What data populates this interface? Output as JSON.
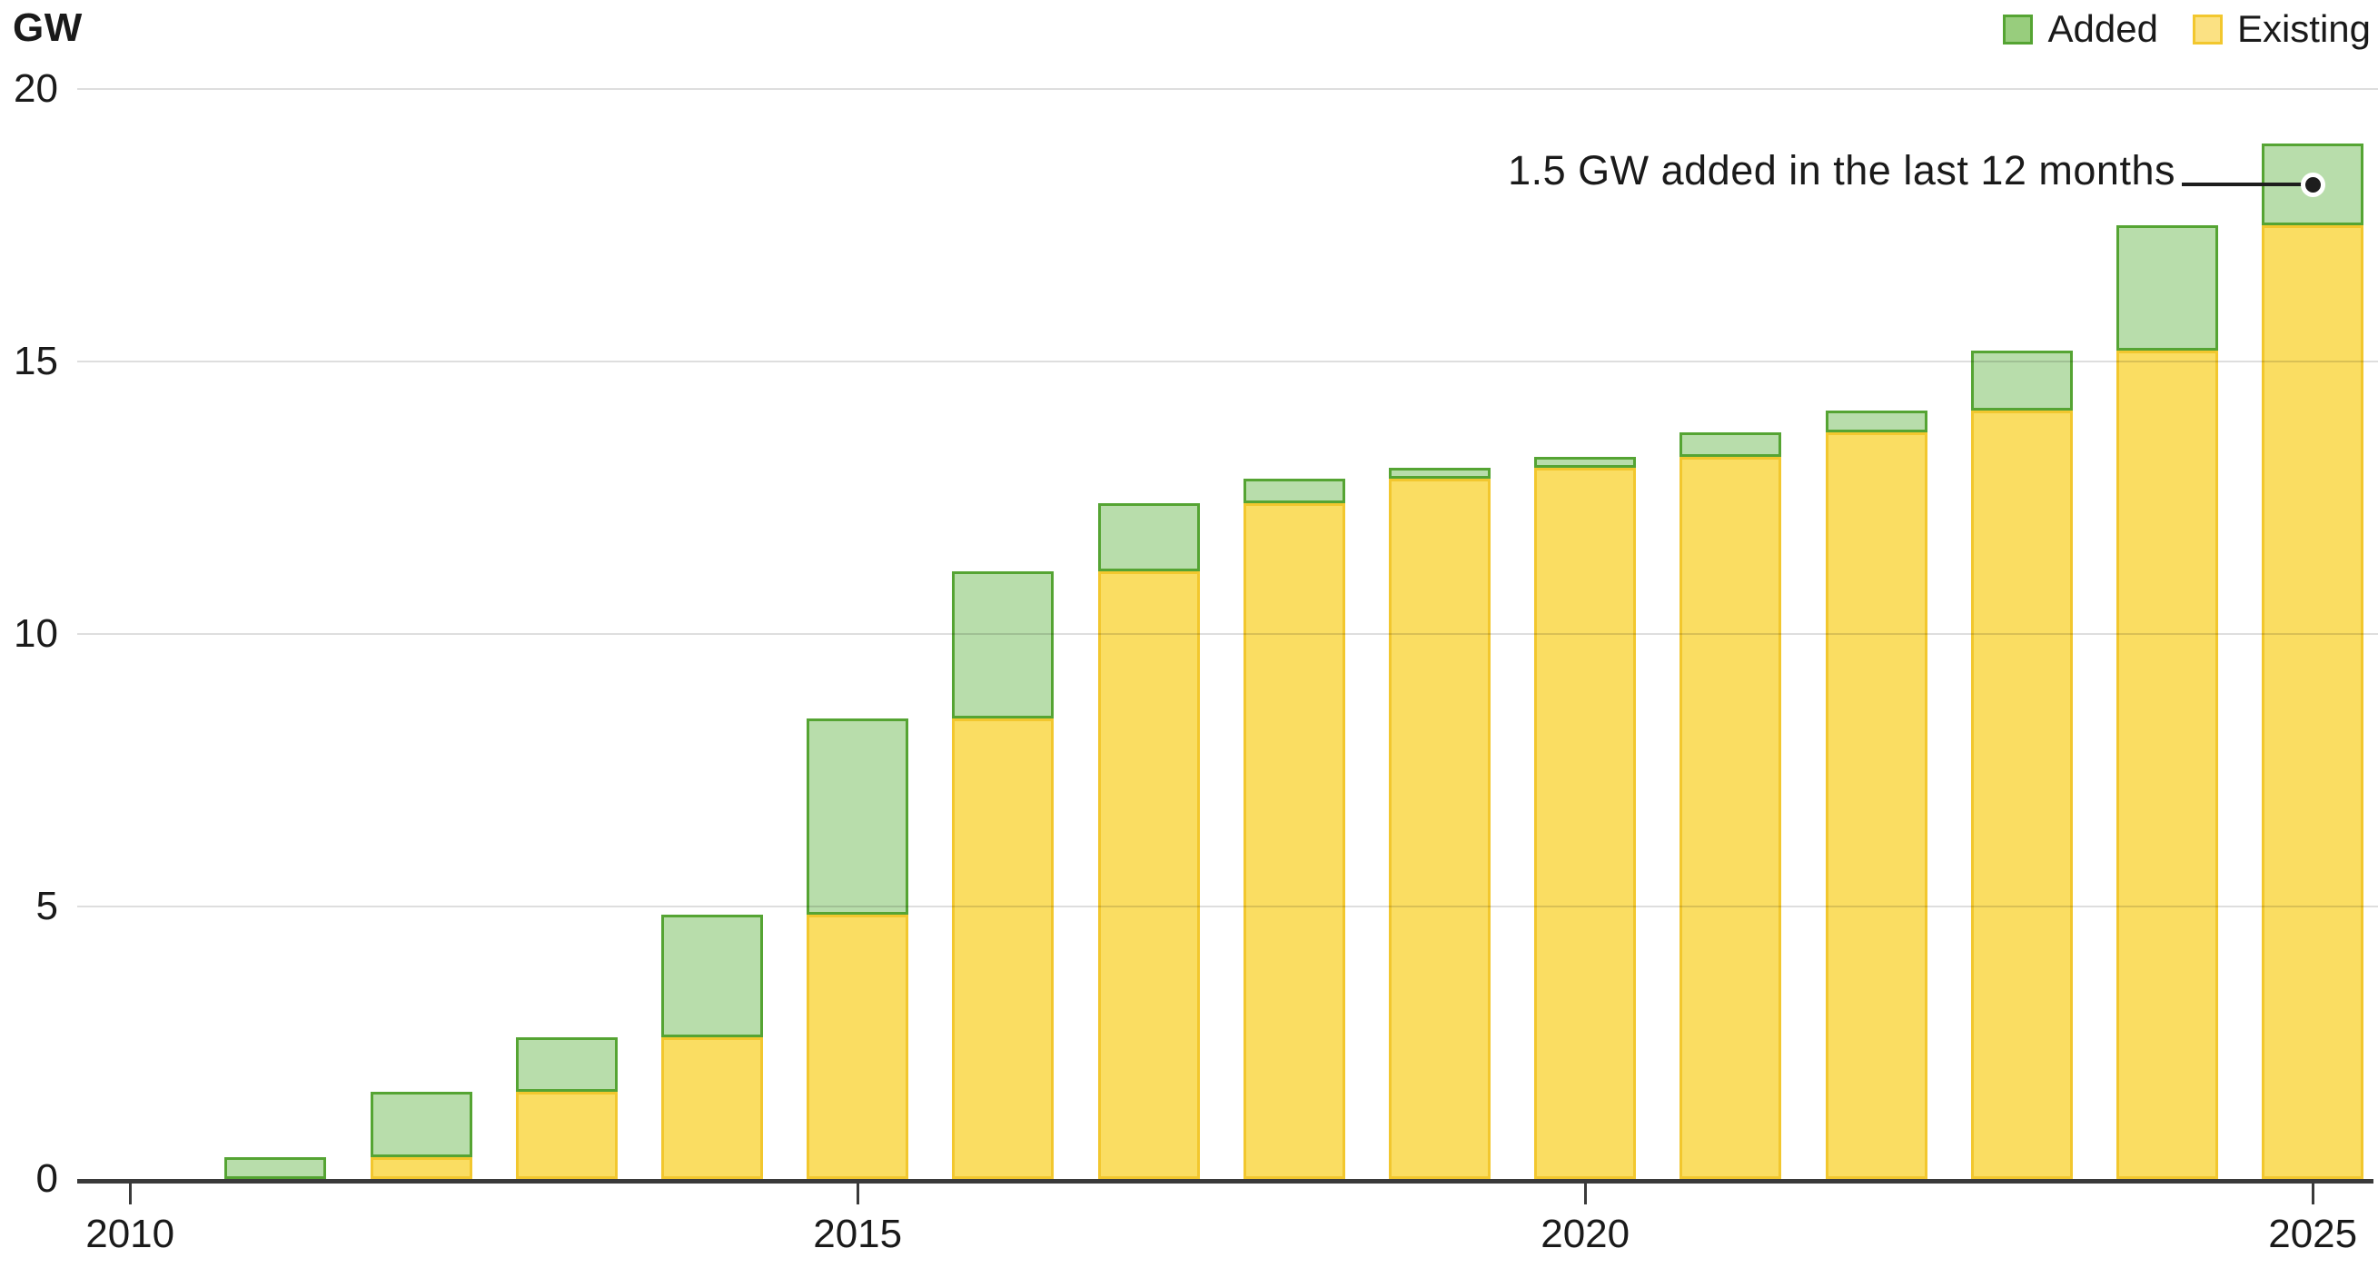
{
  "chart_data": {
    "type": "bar",
    "stacked": true,
    "unit_label": "GW",
    "categories": [
      2010,
      2011,
      2012,
      2013,
      2014,
      2015,
      2016,
      2017,
      2018,
      2019,
      2020,
      2021,
      2022,
      2023,
      2024,
      2025
    ],
    "series": [
      {
        "name": "Added",
        "fill": "#b8ddab",
        "border": "#55a433",
        "legend_fill": "#98cd7d",
        "values": [
          0,
          0.4,
          1.2,
          1.0,
          2.25,
          3.6,
          2.7,
          1.25,
          0.45,
          0.2,
          0.2,
          0.45,
          0.4,
          1.1,
          2.3,
          1.5
        ]
      },
      {
        "name": "Existing",
        "fill": "#fadd62",
        "border": "#f2c72e",
        "legend_fill": "#fbe183",
        "values": [
          0,
          0,
          0.4,
          1.6,
          2.6,
          4.85,
          8.45,
          11.15,
          12.4,
          12.85,
          13.05,
          13.25,
          13.7,
          14.1,
          15.2,
          17.5
        ]
      }
    ],
    "totals": [
      0,
      0.4,
      1.6,
      2.6,
      4.85,
      8.45,
      11.15,
      12.4,
      12.85,
      13.05,
      13.25,
      13.7,
      14.1,
      15.2,
      17.5,
      19.0
    ],
    "ylim": [
      0,
      20
    ],
    "yticks": [
      0,
      5,
      10,
      15,
      20
    ],
    "xticks": [
      2010,
      2015,
      2020,
      2025
    ],
    "grid": true,
    "legend_position": "top-right",
    "annotation": {
      "text": "1.5 GW added in the last 12 months",
      "target_year": 2025,
      "target_value": 18.25
    },
    "colors": {
      "axis": "#3a3a3a",
      "gridline": "#e2e2e2",
      "text": "#1a1a1a",
      "annotation_line": "#1d1d1d"
    }
  }
}
